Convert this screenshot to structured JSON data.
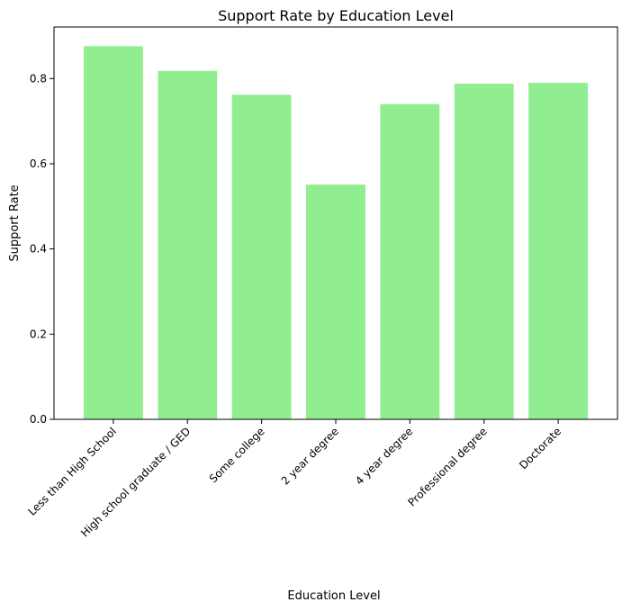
{
  "chart_data": {
    "type": "bar",
    "title": "Support Rate by Education Level",
    "xlabel": "Education Level",
    "ylabel": "Support Rate",
    "categories": [
      "Less than High School",
      "High school graduate / GED",
      "Some college",
      "2 year degree",
      "4 year degree",
      "Professional degree",
      "Doctorate"
    ],
    "values": [
      0.876,
      0.818,
      0.762,
      0.551,
      0.74,
      0.788,
      0.79
    ],
    "ylim": [
      0,
      0.921
    ],
    "yticks": [
      "0.0",
      "0.2",
      "0.4",
      "0.6",
      "0.8"
    ],
    "bar_color": "#90ee90",
    "grid": false
  }
}
